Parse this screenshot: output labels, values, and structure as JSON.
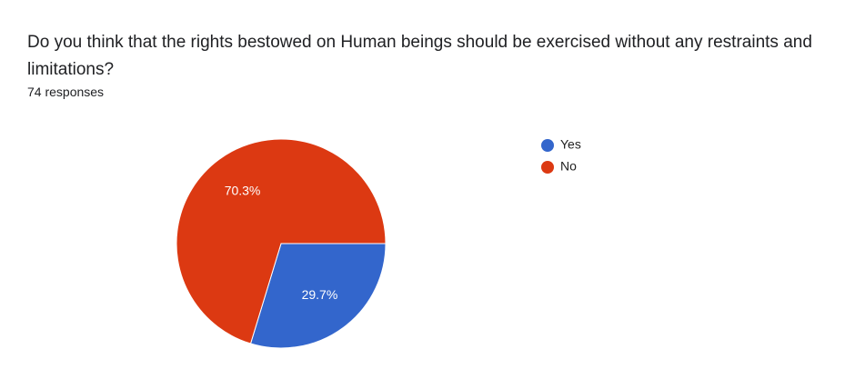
{
  "chart_data": {
    "type": "pie",
    "title": "Do you think that the rights bestowed on Human beings should be exercised without any restraints and limitations?",
    "subtitle": "74 responses",
    "categories": [
      "Yes",
      "No"
    ],
    "values": [
      29.7,
      70.3
    ],
    "value_labels": [
      "29.7%",
      "70.3%"
    ],
    "colors": [
      "#3366cc",
      "#dc3912"
    ],
    "legend": "right"
  }
}
